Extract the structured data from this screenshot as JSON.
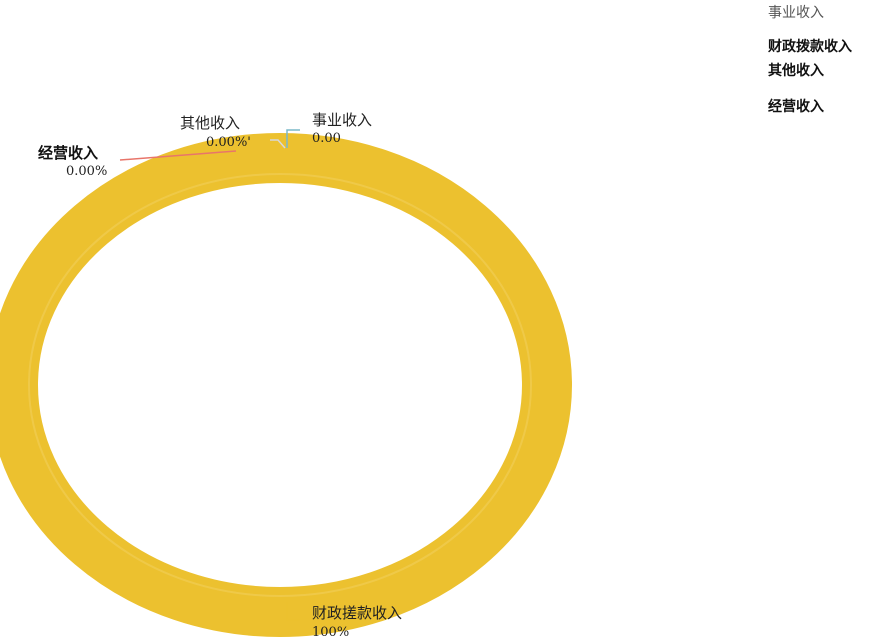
{
  "chart_data": {
    "type": "pie",
    "variant": "donut",
    "slices": [
      {
        "name": "事业收入",
        "label_value": "0.00",
        "value": 0,
        "color": "#7ab8c8"
      },
      {
        "name": "其他收入",
        "label_value": "0.00%'",
        "value": 0,
        "color": "#e9c430"
      },
      {
        "name": "经营收入",
        "label_value": "0.00%",
        "value": 0,
        "color": "#e8756a"
      },
      {
        "name": "财政拨款收入",
        "label_value": "100%",
        "value": 100,
        "color": "#ecc12f"
      }
    ],
    "outer_label_for_main_slice": "财政搓款收入",
    "legend": {
      "placement": "top-right",
      "items": [
        "事业收入",
        "财政拨款收入",
        "其他收入",
        "经营收入"
      ]
    }
  }
}
